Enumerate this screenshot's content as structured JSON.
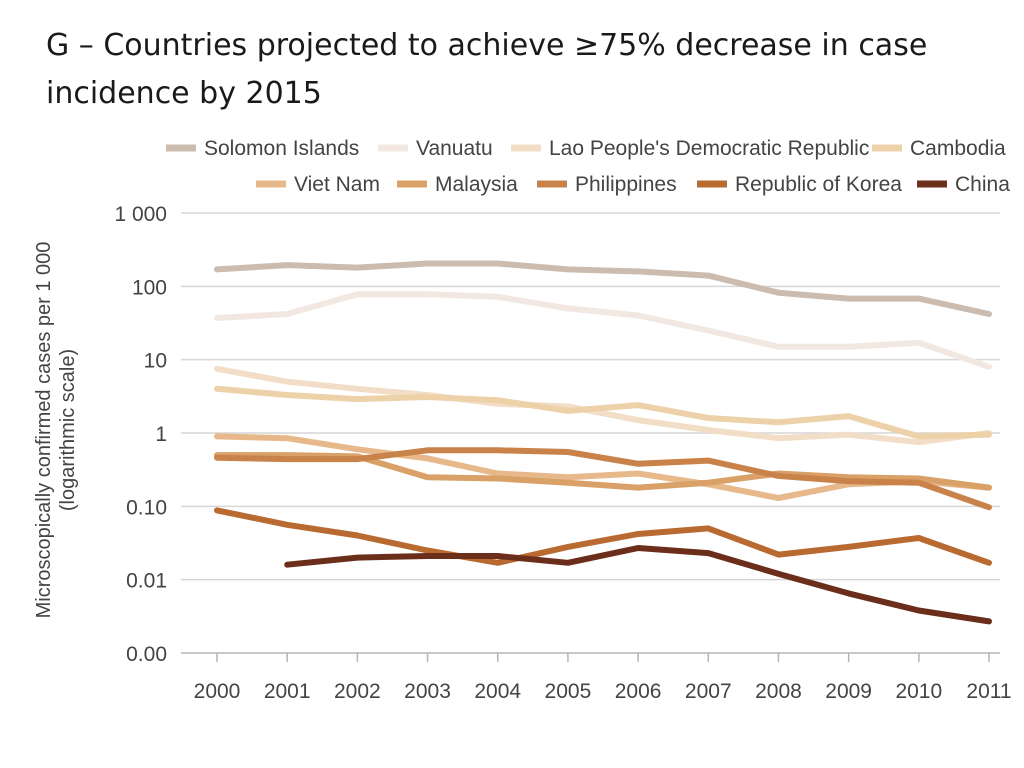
{
  "chart_data": {
    "type": "line",
    "title": "G – Countries projected to achieve ≥75% decrease in case incidence by 2015",
    "ylabel_line1": "Microscopically confirmed cases per 1 000",
    "ylabel_line2": "(logarithmic scale)",
    "y_scale": "log",
    "grid": "horizontal",
    "legend_position": "top",
    "x": [
      "2000",
      "2001",
      "2002",
      "2003",
      "2004",
      "2005",
      "2006",
      "2007",
      "2008",
      "2009",
      "2010",
      "2011"
    ],
    "y_ticks": [
      {
        "value": 1000,
        "label": "1 000"
      },
      {
        "value": 100,
        "label": "100"
      },
      {
        "value": 10,
        "label": "10"
      },
      {
        "value": 1,
        "label": "1"
      },
      {
        "value": 0.1,
        "label": "0.10"
      },
      {
        "value": 0.01,
        "label": "0.01"
      },
      {
        "value": 0.001,
        "label": "0.00"
      }
    ],
    "series": [
      {
        "name": "Solomon Islands",
        "color": "#cbbcaf",
        "values": [
          170,
          195,
          180,
          205,
          205,
          170,
          160,
          140,
          82,
          68,
          68,
          42
        ]
      },
      {
        "name": "Vanuatu",
        "color": "#f2e8e1",
        "values": [
          37,
          42,
          78,
          78,
          72,
          50,
          40,
          25,
          15,
          15,
          17,
          8
        ]
      },
      {
        "name": "Lao People's Democratic Republic",
        "color": "#f2dec6",
        "values": [
          7.5,
          5,
          4,
          3.3,
          2.5,
          2.3,
          1.5,
          1.1,
          0.85,
          0.95,
          0.75,
          1.0
        ]
      },
      {
        "name": "Cambodia",
        "color": "#edd1a8",
        "values": [
          4,
          3.3,
          2.9,
          3.1,
          2.8,
          2.0,
          2.4,
          1.6,
          1.4,
          1.7,
          0.9,
          0.95
        ]
      },
      {
        "name": "Viet Nam",
        "color": "#e7b98a",
        "values": [
          0.9,
          0.85,
          0.6,
          0.45,
          0.28,
          0.25,
          0.28,
          0.2,
          0.13,
          0.2,
          0.22,
          0.18
        ]
      },
      {
        "name": "Malaysia",
        "color": "#d9a067",
        "values": [
          0.5,
          0.5,
          0.48,
          0.25,
          0.24,
          0.21,
          0.18,
          0.21,
          0.28,
          0.25,
          0.24,
          0.18
        ]
      },
      {
        "name": "Philippines",
        "color": "#c9824a",
        "values": [
          0.46,
          0.44,
          0.44,
          0.58,
          0.58,
          0.55,
          0.38,
          0.42,
          0.26,
          0.22,
          0.21,
          0.097
        ]
      },
      {
        "name": "Republic of Korea",
        "color": "#b96a31",
        "values": [
          0.088,
          0.056,
          0.04,
          0.025,
          0.017,
          0.028,
          0.042,
          0.05,
          0.022,
          0.028,
          0.037,
          0.017
        ]
      },
      {
        "name": "China",
        "color": "#6b2e1a",
        "values": [
          null,
          0.016,
          0.02,
          0.021,
          0.021,
          0.017,
          0.027,
          0.023,
          0.012,
          0.0065,
          0.0038,
          0.0027
        ]
      }
    ]
  }
}
